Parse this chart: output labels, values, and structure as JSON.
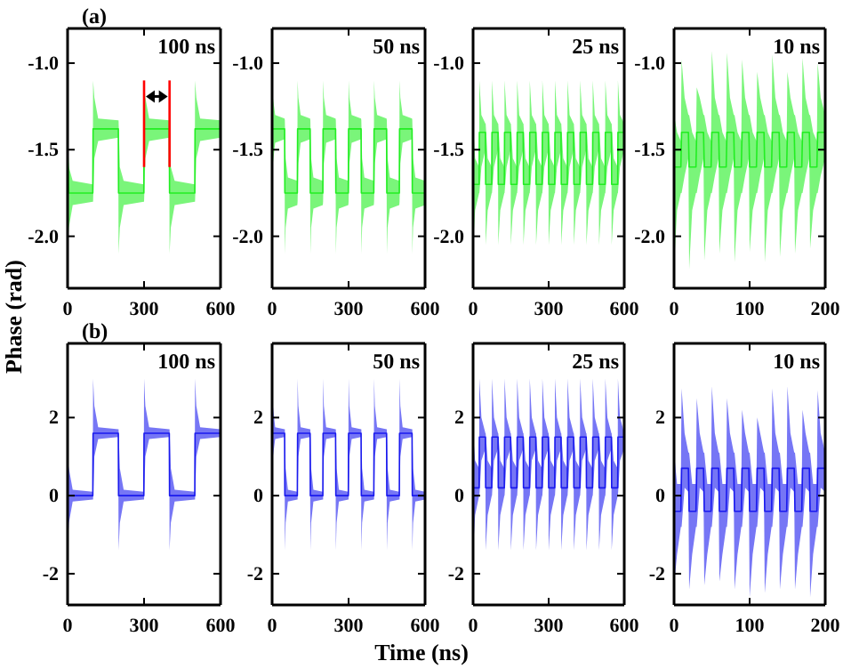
{
  "chart_data": [
    {
      "type": "line",
      "title": "(a)",
      "ylabel": "Phase (rad)",
      "annotations": [
        "100 ns"
      ],
      "xlim": [
        0,
        600
      ],
      "xticks": [
        0,
        300,
        600
      ],
      "ylim": [
        -2.3,
        -0.8
      ],
      "yticks": [
        {
          "value": -2,
          "label": "-2.0"
        },
        {
          "value": -1.5,
          "label": "-1.5"
        },
        {
          "value": -1,
          "label": "-1.0"
        }
      ],
      "series": [
        {
          "color": "#22ee22",
          "x": [
            0,
            5,
            20,
            99,
            100,
            105,
            120,
            199,
            200,
            205,
            220,
            299,
            300,
            305,
            320,
            399,
            400,
            405,
            420,
            499,
            500,
            505,
            520,
            600
          ],
          "values": [
            -1.5,
            -1.75,
            -1.75,
            -1.75,
            -1.38,
            -1.38,
            -1.38,
            -1.38,
            -1.75,
            -1.75,
            -1.75,
            -1.75,
            -1.38,
            -1.38,
            -1.38,
            -1.38,
            -1.75,
            -1.75,
            -1.75,
            -1.75,
            -1.38,
            -1.38,
            -1.38,
            -1.38
          ],
          "lower": [
            -2.05,
            -1.95,
            -1.82,
            -1.8,
            -1.8,
            -1.55,
            -1.45,
            -1.43,
            -2.1,
            -1.95,
            -1.82,
            -1.8,
            -1.8,
            -1.55,
            -1.45,
            -1.43,
            -2.1,
            -1.95,
            -1.82,
            -1.8,
            -1.8,
            -1.55,
            -1.45,
            -1.43
          ],
          "upper": [
            -1.5,
            -1.6,
            -1.68,
            -1.7,
            -1.1,
            -1.2,
            -1.32,
            -1.33,
            -1.33,
            -1.6,
            -1.68,
            -1.7,
            -1.1,
            -1.2,
            -1.32,
            -1.33,
            -1.33,
            -1.6,
            -1.68,
            -1.7,
            -1.1,
            -1.2,
            -1.32,
            -1.33
          ]
        },
        {
          "color": "#ff0000",
          "x": [
            300,
            300
          ],
          "values": [
            -1.6,
            -1.1
          ]
        },
        {
          "color": "#ff0000",
          "x": [
            400,
            400
          ],
          "values": [
            -1.6,
            -1.1
          ]
        }
      ]
    },
    {
      "type": "line",
      "annotations": [
        "50 ns"
      ],
      "xlim": [
        0,
        600
      ],
      "xticks": [
        0,
        300,
        600
      ],
      "ylim": [
        -2.3,
        -0.8
      ],
      "yticks": [
        {
          "value": -2,
          "label": "-2.0"
        },
        {
          "value": -1.5,
          "label": "-1.5"
        },
        {
          "value": -1,
          "label": "-1.0"
        }
      ],
      "series": [
        {
          "color": "#22ee22",
          "x": [
            0,
            3,
            12,
            49,
            50,
            53,
            62,
            99,
            100,
            103,
            112,
            149,
            150,
            153,
            162,
            199,
            200,
            203,
            212,
            249,
            250,
            253,
            262,
            299,
            300,
            303,
            312,
            349,
            350,
            353,
            362,
            399,
            400,
            403,
            412,
            449,
            450,
            453,
            462,
            499,
            500,
            503,
            512,
            549,
            550,
            553,
            562,
            600
          ],
          "values": [
            -1.38,
            -1.38,
            -1.38,
            -1.38,
            -1.75,
            -1.75,
            -1.75,
            -1.75,
            -1.38,
            -1.38,
            -1.38,
            -1.38,
            -1.75,
            -1.75,
            -1.75,
            -1.75,
            -1.38,
            -1.38,
            -1.38,
            -1.38,
            -1.75,
            -1.75,
            -1.75,
            -1.75,
            -1.38,
            -1.38,
            -1.38,
            -1.38,
            -1.75,
            -1.75,
            -1.75,
            -1.75,
            -1.38,
            -1.38,
            -1.38,
            -1.38,
            -1.75,
            -1.75,
            -1.75,
            -1.75,
            -1.38,
            -1.38,
            -1.38,
            -1.38,
            -1.75,
            -1.75,
            -1.75,
            -1.75
          ],
          "lower": [
            -1.5,
            -1.58,
            -1.46,
            -1.44,
            -2.1,
            -1.95,
            -1.84,
            -1.82,
            -1.8,
            -1.58,
            -1.46,
            -1.44,
            -2.1,
            -1.95,
            -1.84,
            -1.82,
            -1.8,
            -1.58,
            -1.46,
            -1.44,
            -2.1,
            -1.95,
            -1.84,
            -1.82,
            -1.8,
            -1.58,
            -1.46,
            -1.44,
            -2.1,
            -1.95,
            -1.84,
            -1.82,
            -1.8,
            -1.58,
            -1.46,
            -1.44,
            -2.1,
            -1.95,
            -1.84,
            -1.82,
            -1.8,
            -1.58,
            -1.46,
            -1.44,
            -2.1,
            -1.95,
            -1.84,
            -1.82
          ],
          "upper": [
            -1.1,
            -1.2,
            -1.3,
            -1.32,
            -1.33,
            -1.55,
            -1.66,
            -1.68,
            -1.1,
            -1.2,
            -1.3,
            -1.32,
            -1.33,
            -1.55,
            -1.66,
            -1.68,
            -1.1,
            -1.2,
            -1.3,
            -1.32,
            -1.33,
            -1.55,
            -1.66,
            -1.68,
            -1.1,
            -1.2,
            -1.3,
            -1.32,
            -1.33,
            -1.55,
            -1.66,
            -1.68,
            -1.1,
            -1.2,
            -1.3,
            -1.32,
            -1.33,
            -1.55,
            -1.66,
            -1.68,
            -1.1,
            -1.2,
            -1.3,
            -1.32,
            -1.33,
            -1.55,
            -1.66,
            -1.68
          ]
        }
      ]
    },
    {
      "type": "line",
      "annotations": [
        "25 ns"
      ],
      "xlim": [
        0,
        600
      ],
      "xticks": [
        0,
        300,
        600
      ],
      "ylim": [
        -2.3,
        -0.8
      ],
      "yticks": [
        {
          "value": -2,
          "label": "-2.0"
        },
        {
          "value": -1.5,
          "label": "-1.5"
        },
        {
          "value": -1,
          "label": "-1.0"
        }
      ],
      "series": [
        {
          "color": "#22ee22",
          "x": [
            0,
            8,
            24,
            25,
            33,
            49,
            50,
            58,
            74,
            75,
            83,
            99,
            100,
            108,
            124,
            125,
            133,
            149,
            150,
            158,
            174,
            175,
            183,
            199,
            200,
            208,
            224,
            225,
            233,
            249,
            250,
            258,
            274,
            275,
            283,
            299,
            300,
            308,
            324,
            325,
            333,
            349,
            350,
            358,
            374,
            375,
            383,
            399,
            400,
            408,
            424,
            425,
            433,
            449,
            450,
            458,
            474,
            475,
            483,
            499,
            500,
            508,
            524,
            525,
            533,
            549,
            550,
            558,
            574,
            575,
            583,
            600
          ],
          "values": [
            -1.7,
            -1.7,
            -1.7,
            -1.4,
            -1.4,
            -1.4,
            -1.7,
            -1.7,
            -1.7,
            -1.4,
            -1.4,
            -1.4,
            -1.7,
            -1.7,
            -1.7,
            -1.4,
            -1.4,
            -1.4,
            -1.7,
            -1.7,
            -1.7,
            -1.4,
            -1.4,
            -1.4,
            -1.7,
            -1.7,
            -1.7,
            -1.4,
            -1.4,
            -1.4,
            -1.7,
            -1.7,
            -1.7,
            -1.4,
            -1.4,
            -1.4,
            -1.7,
            -1.7,
            -1.7,
            -1.4,
            -1.4,
            -1.4,
            -1.7,
            -1.7,
            -1.7,
            -1.4,
            -1.4,
            -1.4,
            -1.7,
            -1.7,
            -1.7,
            -1.4,
            -1.4,
            -1.4,
            -1.7,
            -1.7,
            -1.7,
            -1.4,
            -1.4,
            -1.4,
            -1.7,
            -1.7,
            -1.7,
            -1.4,
            -1.4,
            -1.4,
            -1.7,
            -1.7,
            -1.7,
            -1.4,
            -1.4,
            -1.4
          ],
          "lower": [
            -2.05,
            -1.85,
            -1.75,
            -1.75,
            -1.6,
            -1.5,
            -2.05,
            -1.85,
            -1.75,
            -1.75,
            -1.6,
            -1.5,
            -2.05,
            -1.85,
            -1.75,
            -1.75,
            -1.6,
            -1.5,
            -2.05,
            -1.85,
            -1.75,
            -1.75,
            -1.6,
            -1.5,
            -2.05,
            -1.85,
            -1.75,
            -1.75,
            -1.6,
            -1.5,
            -2.05,
            -1.85,
            -1.75,
            -1.75,
            -1.6,
            -1.5,
            -2.05,
            -1.85,
            -1.75,
            -1.75,
            -1.6,
            -1.5,
            -2.05,
            -1.85,
            -1.75,
            -1.75,
            -1.6,
            -1.5,
            -2.05,
            -1.85,
            -1.75,
            -1.75,
            -1.6,
            -1.5,
            -2.05,
            -1.85,
            -1.75,
            -1.75,
            -1.6,
            -1.5,
            -2.05,
            -1.85,
            -1.75,
            -1.75,
            -1.6,
            -1.5,
            -2.05,
            -1.85,
            -1.75,
            -1.75,
            -1.6,
            -1.5
          ],
          "upper": [
            -1.35,
            -1.55,
            -1.6,
            -1.1,
            -1.3,
            -1.35,
            -1.35,
            -1.55,
            -1.6,
            -1.1,
            -1.3,
            -1.35,
            -1.35,
            -1.55,
            -1.6,
            -1.1,
            -1.3,
            -1.35,
            -1.35,
            -1.55,
            -1.6,
            -1.1,
            -1.3,
            -1.35,
            -1.35,
            -1.55,
            -1.6,
            -1.1,
            -1.3,
            -1.35,
            -1.35,
            -1.55,
            -1.6,
            -1.1,
            -1.3,
            -1.35,
            -1.35,
            -1.55,
            -1.6,
            -1.1,
            -1.3,
            -1.35,
            -1.35,
            -1.55,
            -1.6,
            -1.1,
            -1.3,
            -1.35,
            -1.35,
            -1.55,
            -1.6,
            -1.1,
            -1.3,
            -1.35,
            -1.35,
            -1.55,
            -1.6,
            -1.1,
            -1.3,
            -1.35,
            -1.35,
            -1.55,
            -1.6,
            -1.1,
            -1.3,
            -1.35,
            -1.35,
            -1.55,
            -1.6,
            -1.1,
            -1.3,
            -1.35
          ]
        }
      ]
    },
    {
      "type": "line",
      "annotations": [
        "10 ns"
      ],
      "xlim": [
        0,
        200
      ],
      "xticks": [
        0,
        100,
        200
      ],
      "ylim": [
        -2.3,
        -0.8
      ],
      "yticks": [
        {
          "value": -2,
          "label": "-2.0"
        },
        {
          "value": -1.5,
          "label": "-1.5"
        },
        {
          "value": -1,
          "label": "-1.0"
        }
      ],
      "series": [
        {
          "color": "#22ee22",
          "x": [
            0,
            4,
            9,
            10,
            14,
            19,
            20,
            24,
            29,
            30,
            34,
            39,
            40,
            44,
            49,
            50,
            54,
            59,
            60,
            64,
            69,
            70,
            74,
            79,
            80,
            84,
            89,
            90,
            94,
            99,
            100,
            104,
            109,
            110,
            114,
            119,
            120,
            124,
            129,
            130,
            134,
            139,
            140,
            144,
            149,
            150,
            154,
            159,
            160,
            164,
            169,
            170,
            174,
            179,
            180,
            184,
            189,
            190,
            194,
            200
          ],
          "values": [
            -1.6,
            -1.6,
            -1.6,
            -1.4,
            -1.4,
            -1.4,
            -1.6,
            -1.6,
            -1.6,
            -1.4,
            -1.4,
            -1.4,
            -1.6,
            -1.6,
            -1.6,
            -1.4,
            -1.4,
            -1.4,
            -1.6,
            -1.6,
            -1.6,
            -1.4,
            -1.4,
            -1.4,
            -1.6,
            -1.6,
            -1.6,
            -1.4,
            -1.4,
            -1.4,
            -1.6,
            -1.6,
            -1.6,
            -1.4,
            -1.4,
            -1.4,
            -1.6,
            -1.6,
            -1.6,
            -1.4,
            -1.4,
            -1.4,
            -1.6,
            -1.6,
            -1.6,
            -1.4,
            -1.4,
            -1.4,
            -1.6,
            -1.6,
            -1.6,
            -1.4,
            -1.4,
            -1.4,
            -1.6,
            -1.6,
            -1.6,
            -1.4,
            -1.4,
            -1.4
          ],
          "lower": [
            -2.17,
            -1.85,
            -1.75,
            -1.75,
            -1.65,
            -1.55,
            -2.19,
            -1.85,
            -1.75,
            -1.75,
            -1.65,
            -1.55,
            -2.14,
            -1.85,
            -1.75,
            -1.75,
            -1.65,
            -1.55,
            -2.1,
            -1.85,
            -1.75,
            -1.75,
            -1.65,
            -1.55,
            -2.15,
            -1.85,
            -1.75,
            -1.75,
            -1.65,
            -1.55,
            -2.09,
            -1.85,
            -1.75,
            -1.75,
            -1.65,
            -1.55,
            -2.15,
            -1.85,
            -1.75,
            -1.75,
            -1.65,
            -1.55,
            -2.12,
            -1.85,
            -1.75,
            -1.75,
            -1.65,
            -1.55,
            -2.1,
            -1.85,
            -1.75,
            -1.75,
            -1.65,
            -1.55,
            -2.07,
            -1.85,
            -1.75,
            -1.75,
            -1.65,
            -1.55
          ],
          "upper": [
            -1.3,
            -1.4,
            -1.45,
            -0.98,
            -1.2,
            -1.3,
            -1.3,
            -1.4,
            -1.45,
            -1.14,
            -1.2,
            -1.3,
            -1.3,
            -1.4,
            -1.45,
            -0.93,
            -1.2,
            -1.3,
            -1.3,
            -1.4,
            -1.45,
            -0.94,
            -1.2,
            -1.3,
            -1.3,
            -1.4,
            -1.45,
            -0.98,
            -1.2,
            -1.3,
            -1.3,
            -1.4,
            -1.45,
            -1.05,
            -1.2,
            -1.3,
            -1.3,
            -1.4,
            -1.45,
            -0.95,
            -1.2,
            -1.3,
            -1.3,
            -1.4,
            -1.45,
            -1.05,
            -1.2,
            -1.3,
            -1.3,
            -1.4,
            -1.45,
            -0.97,
            -1.2,
            -1.3,
            -1.3,
            -1.4,
            -1.45,
            -1.0,
            -1.2,
            -1.3
          ]
        }
      ]
    },
    {
      "type": "line",
      "title": "(b)",
      "annotations": [
        "100 ns"
      ],
      "xlim": [
        0,
        600
      ],
      "xticks": [
        0,
        300,
        600
      ],
      "ylim": [
        -2.8,
        3.9
      ],
      "yticks": [
        -2,
        0,
        2
      ],
      "series": [
        {
          "color": "#1a1aee",
          "x": [
            0,
            5,
            20,
            99,
            100,
            105,
            120,
            199,
            200,
            205,
            220,
            299,
            300,
            305,
            320,
            399,
            400,
            405,
            420,
            499,
            500,
            505,
            520,
            600
          ],
          "values": [
            0,
            0,
            0,
            0,
            1.6,
            1.6,
            1.6,
            1.6,
            0,
            0,
            0,
            0,
            1.6,
            1.6,
            1.6,
            1.6,
            0,
            0,
            0,
            0,
            1.6,
            1.6,
            1.6,
            1.6
          ],
          "lower": [
            -1.3,
            -0.7,
            -0.15,
            -0.1,
            -0.1,
            1.0,
            1.45,
            1.5,
            -1.4,
            -0.7,
            -0.15,
            -0.1,
            -0.1,
            1.0,
            1.45,
            1.5,
            -1.4,
            -0.7,
            -0.15,
            -0.1,
            -0.1,
            1.0,
            1.45,
            1.5
          ],
          "upper": [
            0.9,
            0.7,
            0.15,
            0.1,
            3.0,
            2.3,
            1.75,
            1.7,
            1.7,
            0.7,
            0.15,
            0.1,
            3.0,
            2.3,
            1.75,
            1.7,
            1.7,
            0.7,
            0.15,
            0.1,
            3.0,
            2.3,
            1.75,
            1.7
          ]
        }
      ]
    },
    {
      "type": "line",
      "annotations": [
        "50 ns"
      ],
      "xlim": [
        0,
        600
      ],
      "xticks": [
        0,
        300,
        600
      ],
      "ylim": [
        -2.8,
        3.9
      ],
      "yticks": [
        -2,
        0,
        2
      ],
      "series": [
        {
          "color": "#1a1aee",
          "x": [
            0,
            3,
            12,
            49,
            50,
            53,
            62,
            99,
            100,
            103,
            112,
            149,
            150,
            153,
            162,
            199,
            200,
            203,
            212,
            249,
            250,
            253,
            262,
            299,
            300,
            303,
            312,
            349,
            350,
            353,
            362,
            399,
            400,
            403,
            412,
            449,
            450,
            453,
            462,
            499,
            500,
            503,
            512,
            549,
            550,
            553,
            562,
            600
          ],
          "values": [
            1.6,
            1.6,
            1.6,
            1.6,
            0,
            0,
            0,
            0,
            1.6,
            1.6,
            1.6,
            1.6,
            0,
            0,
            0,
            0,
            1.6,
            1.6,
            1.6,
            1.6,
            0,
            0,
            0,
            0,
            1.6,
            1.6,
            1.6,
            1.6,
            0,
            0,
            0,
            0,
            1.6,
            1.6,
            1.6,
            1.6,
            0,
            0,
            0,
            0,
            1.6,
            1.6,
            1.6,
            1.6,
            0,
            0,
            0,
            0
          ],
          "lower": [
            1.0,
            1.0,
            1.45,
            1.5,
            -1.4,
            -0.7,
            -0.15,
            -0.1,
            -0.1,
            1.0,
            1.45,
            1.5,
            -1.4,
            -0.7,
            -0.15,
            -0.1,
            -0.1,
            1.0,
            1.45,
            1.5,
            -1.4,
            -0.7,
            -0.15,
            -0.1,
            -0.1,
            1.0,
            1.45,
            1.5,
            -1.4,
            -0.7,
            -0.15,
            -0.1,
            -0.1,
            1.0,
            1.45,
            1.5,
            -1.4,
            -0.7,
            -0.15,
            -0.1,
            -0.1,
            1.0,
            1.45,
            1.5,
            -1.4,
            -0.7,
            -0.15,
            -0.1
          ],
          "upper": [
            2.9,
            2.3,
            1.75,
            1.7,
            1.7,
            0.7,
            0.15,
            0.1,
            3.0,
            2.3,
            1.75,
            1.7,
            1.7,
            0.7,
            0.15,
            0.1,
            3.0,
            2.3,
            1.75,
            1.7,
            1.7,
            0.7,
            0.15,
            0.1,
            3.0,
            2.3,
            1.75,
            1.7,
            1.7,
            0.7,
            0.15,
            0.1,
            3.0,
            2.3,
            1.75,
            1.7,
            1.7,
            0.7,
            0.15,
            0.1,
            3.0,
            2.3,
            1.75,
            1.7,
            1.7,
            0.7,
            0.15,
            0.1
          ]
        }
      ]
    },
    {
      "type": "line",
      "xlabel": "Time (ns)",
      "annotations": [
        "25 ns"
      ],
      "xlim": [
        0,
        600
      ],
      "xticks": [
        0,
        300,
        600
      ],
      "ylim": [
        -2.8,
        3.9
      ],
      "yticks": [
        -2,
        0,
        2
      ],
      "series": [
        {
          "color": "#1a1aee",
          "x": [
            0,
            8,
            24,
            25,
            33,
            49,
            50,
            58,
            74,
            75,
            83,
            99,
            100,
            108,
            124,
            125,
            133,
            149,
            150,
            158,
            174,
            175,
            183,
            199,
            200,
            208,
            224,
            225,
            233,
            249,
            250,
            258,
            274,
            275,
            283,
            299,
            300,
            308,
            324,
            325,
            333,
            349,
            350,
            358,
            374,
            375,
            383,
            399,
            400,
            408,
            424,
            425,
            433,
            449,
            450,
            458,
            474,
            475,
            483,
            499,
            500,
            508,
            524,
            525,
            533,
            549,
            550,
            558,
            574,
            575,
            583,
            600
          ],
          "values": [
            0.2,
            0.2,
            0.2,
            1.5,
            1.5,
            1.5,
            0.2,
            0.2,
            0.2,
            1.5,
            1.5,
            1.5,
            0.2,
            0.2,
            0.2,
            1.5,
            1.5,
            1.5,
            0.2,
            0.2,
            0.2,
            1.5,
            1.5,
            1.5,
            0.2,
            0.2,
            0.2,
            1.5,
            1.5,
            1.5,
            0.2,
            0.2,
            0.2,
            1.5,
            1.5,
            1.5,
            0.2,
            0.2,
            0.2,
            1.5,
            1.5,
            1.5,
            0.2,
            0.2,
            0.2,
            1.5,
            1.5,
            1.5,
            0.2,
            0.2,
            0.2,
            1.5,
            1.5,
            1.5,
            0.2,
            0.2,
            0.2,
            1.5,
            1.5,
            1.5,
            0.2,
            0.2,
            0.2,
            1.5,
            1.5,
            1.5,
            0.2,
            0.2,
            0.2,
            1.5,
            1.5,
            1.5
          ],
          "lower": [
            -1.4,
            -0.5,
            0.0,
            0.0,
            0.9,
            1.2,
            -1.4,
            -0.5,
            0.0,
            0.0,
            0.9,
            1.2,
            -1.4,
            -0.5,
            0.0,
            0.0,
            0.9,
            1.2,
            -1.4,
            -0.5,
            0.0,
            0.0,
            0.9,
            1.2,
            -1.4,
            -0.5,
            0.0,
            0.0,
            0.9,
            1.2,
            -1.4,
            -0.5,
            0.0,
            0.0,
            0.9,
            1.2,
            -1.4,
            -0.5,
            0.0,
            0.0,
            0.9,
            1.2,
            -1.4,
            -0.5,
            0.0,
            0.0,
            0.9,
            1.2,
            -1.4,
            -0.5,
            0.0,
            0.0,
            0.9,
            1.2,
            -1.4,
            -0.5,
            0.0,
            0.0,
            0.9,
            1.2,
            -1.4,
            -0.5,
            0.0,
            0.0,
            0.9,
            1.2,
            -1.4,
            -0.5,
            0.0,
            0.0,
            0.9,
            1.2
          ],
          "upper": [
            1.6,
            0.9,
            0.7,
            3.0,
            2.0,
            1.6,
            1.6,
            0.9,
            0.7,
            3.0,
            2.0,
            1.6,
            1.6,
            0.9,
            0.7,
            3.0,
            2.0,
            1.6,
            1.6,
            0.9,
            0.7,
            3.0,
            2.0,
            1.6,
            1.6,
            0.9,
            0.7,
            3.0,
            2.0,
            1.6,
            1.6,
            0.9,
            0.7,
            3.0,
            2.0,
            1.6,
            1.6,
            0.9,
            0.7,
            3.0,
            2.0,
            1.6,
            1.6,
            0.9,
            0.7,
            3.0,
            2.0,
            1.6,
            1.6,
            0.9,
            0.7,
            3.0,
            2.0,
            1.6,
            1.6,
            0.9,
            0.7,
            3.0,
            2.0,
            1.6,
            1.6,
            0.9,
            0.7,
            3.0,
            2.0,
            1.6,
            1.6,
            0.9,
            0.7,
            3.0,
            2.0,
            1.6
          ]
        }
      ]
    },
    {
      "type": "line",
      "annotations": [
        "10 ns"
      ],
      "xlim": [
        0,
        200
      ],
      "xticks": [
        0,
        100,
        200
      ],
      "ylim": [
        -2.8,
        3.9
      ],
      "yticks": [
        -2,
        0,
        2
      ],
      "series": [
        {
          "color": "#1a1aee",
          "x": [
            0,
            4,
            9,
            10,
            14,
            19,
            20,
            24,
            29,
            30,
            34,
            39,
            40,
            44,
            49,
            50,
            54,
            59,
            60,
            64,
            69,
            70,
            74,
            79,
            80,
            84,
            89,
            90,
            94,
            99,
            100,
            104,
            109,
            110,
            114,
            119,
            120,
            124,
            129,
            130,
            134,
            139,
            140,
            144,
            149,
            150,
            154,
            159,
            160,
            164,
            169,
            170,
            174,
            179,
            180,
            184,
            189,
            190,
            194,
            200
          ],
          "values": [
            -0.4,
            -0.4,
            -0.4,
            0.7,
            0.7,
            0.7,
            -0.4,
            -0.4,
            -0.4,
            0.7,
            0.7,
            0.7,
            -0.4,
            -0.4,
            -0.4,
            0.7,
            0.7,
            0.7,
            -0.4,
            -0.4,
            -0.4,
            0.7,
            0.7,
            0.7,
            -0.4,
            -0.4,
            -0.4,
            0.7,
            0.7,
            0.7,
            -0.4,
            -0.4,
            -0.4,
            0.7,
            0.7,
            0.7,
            -0.4,
            -0.4,
            -0.4,
            0.7,
            0.7,
            0.7,
            -0.4,
            -0.4,
            -0.4,
            0.7,
            0.7,
            0.7,
            -0.4,
            -0.4,
            -0.4,
            0.7,
            0.7,
            0.7,
            -0.4,
            -0.4,
            -0.4,
            0.7,
            0.7,
            0.7
          ],
          "lower": [
            -2.3,
            -1.5,
            -0.8,
            -0.8,
            0.2,
            0.1,
            -2.4,
            -1.5,
            -0.8,
            -0.8,
            0.2,
            0.1,
            -2.3,
            -1.5,
            -0.8,
            -0.8,
            0.2,
            0.1,
            -2.2,
            -1.5,
            -0.8,
            -0.8,
            0.2,
            0.1,
            -2.4,
            -1.5,
            -0.8,
            -0.8,
            0.2,
            0.1,
            -2.6,
            -1.5,
            -0.8,
            -0.8,
            0.2,
            0.1,
            -2.5,
            -1.5,
            -0.8,
            -0.8,
            0.2,
            0.1,
            -2.4,
            -1.5,
            -0.8,
            -0.8,
            0.2,
            0.1,
            -2.4,
            -1.5,
            -0.8,
            -0.8,
            0.2,
            0.1,
            -2.6,
            -1.5,
            -0.8,
            -0.8,
            0.2,
            0.1
          ],
          "upper": [
            1.1,
            0.3,
            0.3,
            2.75,
            1.6,
            1.1,
            1.1,
            0.3,
            0.3,
            2.5,
            1.6,
            1.1,
            1.1,
            0.3,
            0.3,
            2.8,
            1.6,
            1.1,
            1.1,
            0.3,
            0.3,
            2.5,
            1.6,
            1.1,
            1.1,
            0.3,
            0.3,
            2.2,
            1.6,
            1.1,
            1.1,
            0.3,
            0.3,
            2.0,
            1.6,
            1.1,
            1.1,
            0.3,
            0.3,
            2.75,
            1.6,
            1.1,
            1.1,
            0.3,
            0.3,
            2.8,
            1.6,
            1.1,
            1.1,
            0.3,
            0.3,
            2.2,
            1.6,
            1.1,
            1.1,
            0.3,
            0.3,
            2.7,
            1.6,
            1.1
          ]
        }
      ]
    }
  ]
}
